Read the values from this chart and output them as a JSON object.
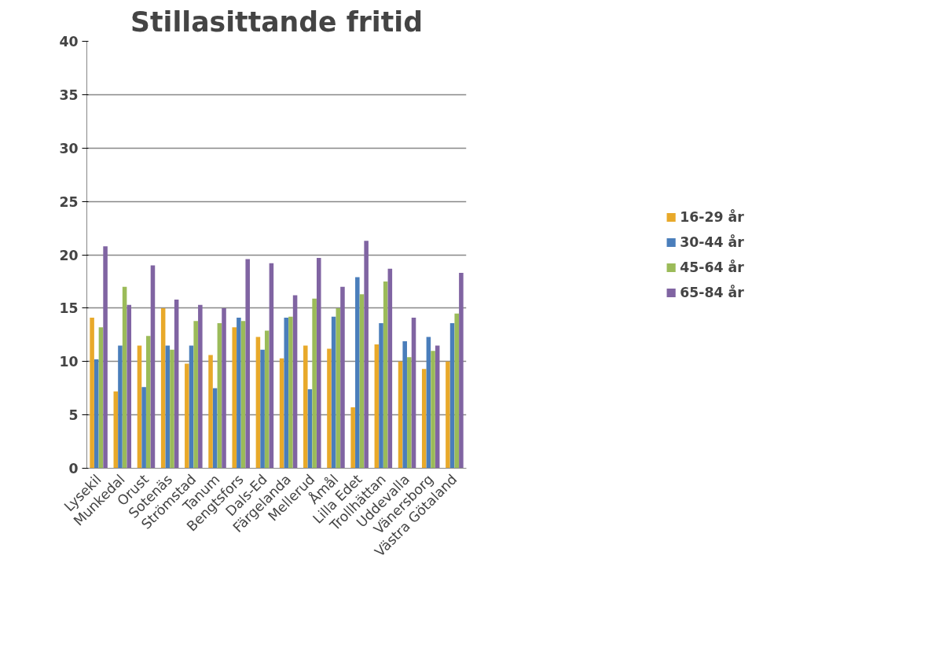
{
  "chart_data": {
    "type": "bar",
    "title": "Stillasittande fritid",
    "categories": [
      "Lysekil",
      "Munkedal",
      "Orust",
      "Sotenäs",
      "Strömstad",
      "Tanum",
      "Bengtsfors",
      "Dals-Ed",
      "Färgelanda",
      "Mellerud",
      "Åmål",
      "Lilla Edet",
      "Trollhättan",
      "Uddevalla",
      "Vänersborg",
      "Västra Götaland"
    ],
    "series": [
      {
        "name": "16-29 år",
        "color": "#e8a92a",
        "values": [
          14.1,
          7.2,
          11.5,
          15.0,
          9.8,
          10.6,
          13.2,
          12.3,
          10.3,
          11.5,
          11.2,
          5.7,
          11.6,
          10.0,
          9.3,
          10.0
        ]
      },
      {
        "name": "30-44 år",
        "color": "#4a7ebb",
        "values": [
          10.2,
          11.5,
          7.6,
          11.5,
          11.5,
          7.5,
          14.1,
          11.1,
          14.1,
          7.4,
          14.2,
          17.9,
          13.6,
          11.9,
          12.3,
          13.6
        ]
      },
      {
        "name": "45-64 år",
        "color": "#9bbb59",
        "values": [
          13.2,
          17.0,
          12.4,
          11.1,
          13.8,
          13.6,
          13.8,
          12.9,
          14.2,
          15.9,
          15.0,
          16.3,
          17.5,
          10.4,
          11.0,
          14.5
        ]
      },
      {
        "name": "65-84 år",
        "color": "#8064a2",
        "values": [
          20.8,
          15.3,
          19.0,
          15.8,
          15.3,
          15.0,
          19.6,
          19.2,
          16.2,
          19.7,
          17.0,
          21.3,
          18.7,
          14.1,
          11.5,
          18.3
        ]
      }
    ],
    "ylim": [
      0,
      40
    ],
    "yticks": [
      0,
      5,
      10,
      15,
      20,
      25,
      30,
      35,
      40
    ],
    "grid": "y",
    "legend": "right"
  }
}
